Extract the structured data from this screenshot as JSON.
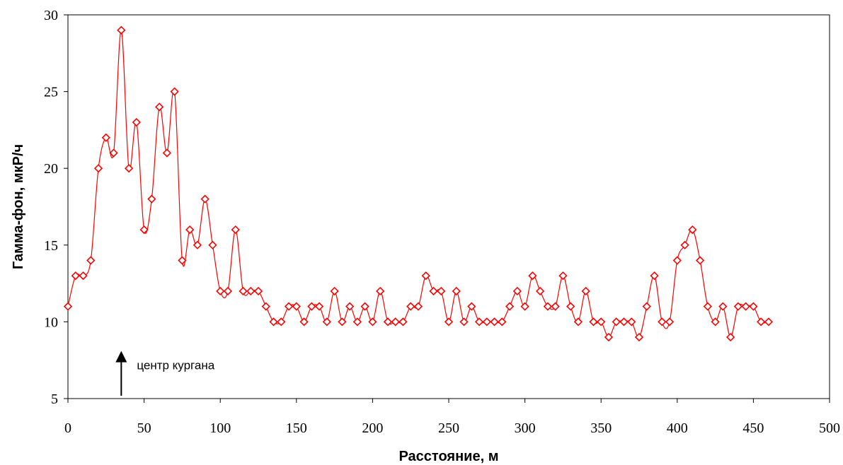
{
  "chart_data": {
    "type": "line",
    "title": "",
    "xlabel": "Расстояние, м",
    "ylabel": "Гамма-фон, мкР/ч",
    "xlim": [
      0,
      500
    ],
    "ylim": [
      5,
      30
    ],
    "xticks": [
      0,
      50,
      100,
      150,
      200,
      250,
      300,
      350,
      400,
      450,
      500
    ],
    "yticks": [
      5,
      10,
      15,
      20,
      25,
      30
    ],
    "grid": false,
    "legend": "none",
    "line_style": "smooth",
    "marker": "diamond-open",
    "series_color": "#ff0000",
    "series": [
      {
        "x": [
          0,
          5,
          10,
          15,
          20,
          25,
          30,
          35,
          40,
          45,
          50,
          55,
          60,
          65,
          70,
          75,
          80,
          85,
          90,
          95,
          100,
          105,
          110,
          115,
          120,
          125,
          130,
          135,
          140,
          145,
          150,
          155,
          160,
          165,
          170,
          175,
          180,
          185,
          190,
          195,
          200,
          205,
          210,
          215,
          220,
          225,
          230,
          235,
          240,
          245,
          250,
          255,
          260,
          265,
          270,
          275,
          280,
          285,
          290,
          295,
          300,
          305,
          310,
          315,
          320,
          325,
          330,
          335,
          340,
          345,
          350,
          355,
          360,
          365,
          370,
          375,
          380,
          385,
          390,
          395,
          400,
          405,
          410,
          415,
          420,
          425,
          430,
          435,
          440,
          445,
          450,
          455,
          460
        ],
        "y": [
          11,
          13,
          13,
          14,
          20,
          22,
          21,
          29,
          20,
          23,
          16,
          18,
          24,
          21,
          25,
          14,
          16,
          15,
          18,
          15,
          12,
          12,
          16,
          12,
          12,
          12,
          11,
          10,
          10,
          11,
          11,
          10,
          11,
          11,
          10,
          12,
          10,
          11,
          10,
          11,
          10,
          12,
          10,
          10,
          10,
          11,
          11,
          13,
          12,
          12,
          10,
          12,
          10,
          11,
          10,
          10,
          10,
          10,
          11,
          12,
          11,
          13,
          12,
          11,
          11,
          13,
          11,
          10,
          12,
          10,
          10,
          9,
          10,
          10,
          10,
          9,
          11,
          13,
          10,
          10,
          14,
          15,
          16,
          14,
          11,
          10,
          11,
          9,
          11,
          11,
          11,
          10,
          10
        ]
      }
    ],
    "annotations": [
      {
        "text": "центр кургана",
        "arrow_x": 35,
        "arrow_tip_y": 8.1,
        "arrow_base_y": 5
      }
    ]
  }
}
